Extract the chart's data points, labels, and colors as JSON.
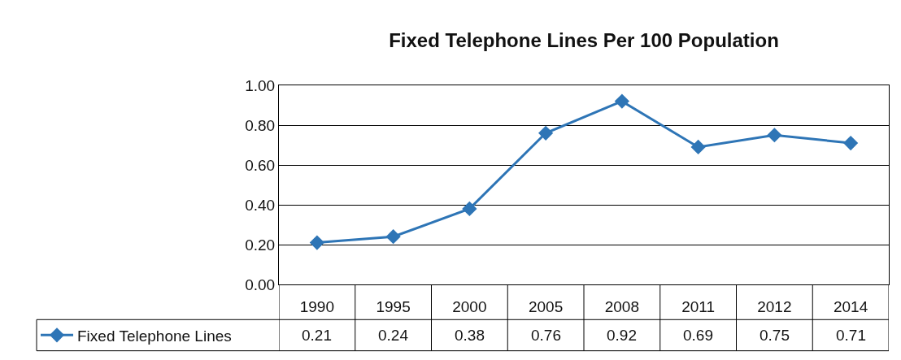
{
  "chart_data": {
    "type": "line",
    "title": "Fixed Telephone Lines Per 100 Population",
    "categories": [
      "1990",
      "1995",
      "2000",
      "2005",
      "2008",
      "2011",
      "2012",
      "2014"
    ],
    "series": [
      {
        "name": "Fixed Telephone Lines",
        "color": "#2e75b6",
        "values": [
          0.21,
          0.24,
          0.38,
          0.76,
          0.92,
          0.69,
          0.75,
          0.71
        ]
      }
    ],
    "ylim": [
      0,
      1
    ],
    "yticks": [
      {
        "value": 0,
        "label": "0.00"
      },
      {
        "value": 0.2,
        "label": "0.20"
      },
      {
        "value": 0.4,
        "label": "0.40"
      },
      {
        "value": 0.6,
        "label": "0.60"
      },
      {
        "value": 0.8,
        "label": "0.80"
      },
      {
        "value": 1,
        "label": "1.00"
      }
    ],
    "grid": "y",
    "legend": "bottom",
    "marker": "diamond",
    "line_style": "solid",
    "data_labels": true
  }
}
